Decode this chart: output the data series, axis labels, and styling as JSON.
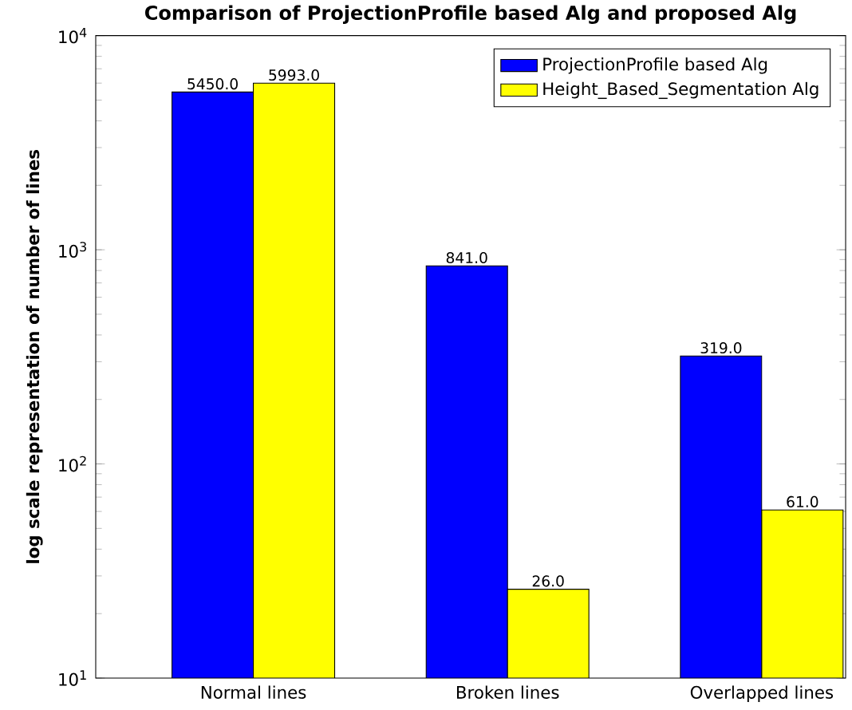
{
  "chart_data": {
    "type": "bar",
    "title": "Comparison of ProjectionProfile based Alg and proposed Alg",
    "ylabel": "log scale representation of number of lines",
    "categories": [
      "Normal lines",
      "Broken lines",
      "Overlapped lines"
    ],
    "series": [
      {
        "name": "ProjectionProfile based Alg",
        "color": "#0000ff",
        "values": [
          5450,
          841,
          319
        ],
        "value_labels": [
          "5450.0",
          "841.0",
          "319.0"
        ]
      },
      {
        "name": "Height_Based_Segmentation Alg",
        "color": "#ffff00",
        "values": [
          5993,
          26,
          61
        ],
        "value_labels": [
          "5993.0",
          "26.0",
          "61.0"
        ]
      }
    ],
    "log": true,
    "ylim": [
      10,
      10000
    ],
    "yticks": [
      {
        "value": 10,
        "label": "10$^{1}$"
      },
      {
        "value": 100,
        "label": "10$^{2}$"
      },
      {
        "value": 1000,
        "label": "10$^{3}$"
      },
      {
        "value": 10000,
        "label": "10$^{4}$"
      }
    ],
    "grid": false,
    "legend": "top right"
  }
}
